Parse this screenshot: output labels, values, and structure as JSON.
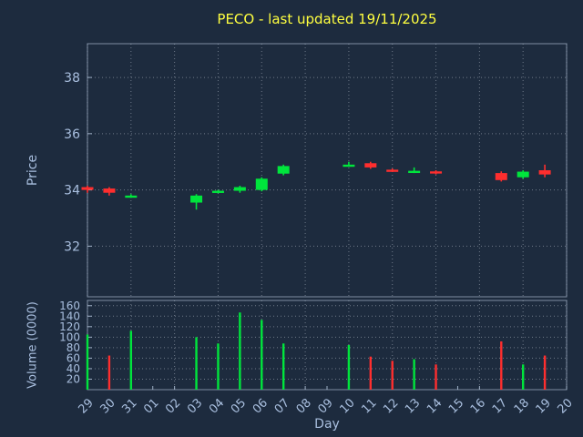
{
  "title": "PECO - last updated 19/11/2025",
  "axes": {
    "price_label": "Price",
    "volume_label": "Volume (0000)",
    "x_label": "Day"
  },
  "colors": {
    "background": "#1d2b3e",
    "title": "#ffff40",
    "axis_line": "#9fb0c6",
    "tick_text": "#a9bfdf",
    "grid": "#e8eef8",
    "up": "#00e53c",
    "down": "#ff2e2e"
  },
  "chart_data": {
    "type": "candlestick",
    "title": "PECO - last updated 19/11/2025",
    "xlabel": "Day",
    "ylabel": "Price",
    "ylabel2": "Volume (0000)",
    "grid": true,
    "x_ticklabels": [
      "29",
      "30",
      "31",
      "01",
      "02",
      "03",
      "04",
      "05",
      "06",
      "07",
      "08",
      "09",
      "10",
      "11",
      "12",
      "13",
      "14",
      "15",
      "16",
      "17",
      "18",
      "19",
      "20"
    ],
    "price_yticks": [
      32,
      34,
      36,
      38
    ],
    "price_ylim": [
      30.2,
      39.2
    ],
    "volume_yticks": [
      20,
      40,
      60,
      80,
      100,
      120,
      140,
      160
    ],
    "volume_ylim": [
      0,
      170
    ],
    "candles": [
      {
        "day": "29",
        "x": 0,
        "open": 34.1,
        "high": 34.15,
        "low": 33.9,
        "close": 34.0,
        "volume": 105,
        "vol_up": true
      },
      {
        "day": "30",
        "x": 1,
        "open": 34.05,
        "high": 34.1,
        "low": 33.8,
        "close": 33.9,
        "volume": 65,
        "vol_up": false
      },
      {
        "day": "31",
        "x": 2,
        "open": 33.8,
        "high": 33.85,
        "low": 33.72,
        "close": 33.8,
        "volume": 112,
        "vol_up": true
      },
      {
        "day": "03",
        "x": 5,
        "open": 33.55,
        "high": 33.85,
        "low": 33.3,
        "close": 33.8,
        "volume": 100,
        "vol_up": true
      },
      {
        "day": "04",
        "x": 6,
        "open": 33.95,
        "high": 34.0,
        "low": 33.88,
        "close": 33.97,
        "volume": 88,
        "vol_up": true
      },
      {
        "day": "05",
        "x": 7,
        "open": 33.97,
        "high": 34.15,
        "low": 33.9,
        "close": 34.1,
        "volume": 147,
        "vol_up": true
      },
      {
        "day": "06",
        "x": 8,
        "open": 34.0,
        "high": 34.45,
        "low": 33.95,
        "close": 34.4,
        "volume": 133,
        "vol_up": true
      },
      {
        "day": "07",
        "x": 9,
        "open": 34.58,
        "high": 34.9,
        "low": 34.52,
        "close": 34.85,
        "volume": 88,
        "vol_up": true
      },
      {
        "day": "10",
        "x": 12,
        "open": 34.88,
        "high": 35.0,
        "low": 34.84,
        "close": 34.9,
        "volume": 85,
        "vol_up": true
      },
      {
        "day": "11",
        "x": 13,
        "open": 34.95,
        "high": 35.0,
        "low": 34.75,
        "close": 34.8,
        "volume": 63,
        "vol_up": false
      },
      {
        "day": "12",
        "x": 14,
        "open": 34.72,
        "high": 34.76,
        "low": 34.64,
        "close": 34.67,
        "volume": 55,
        "vol_up": false
      },
      {
        "day": "13",
        "x": 15,
        "open": 34.64,
        "high": 34.8,
        "low": 34.6,
        "close": 34.68,
        "volume": 58,
        "vol_up": true
      },
      {
        "day": "14",
        "x": 16,
        "open": 34.66,
        "high": 34.7,
        "low": 34.55,
        "close": 34.6,
        "volume": 48,
        "vol_up": false
      },
      {
        "day": "17",
        "x": 19,
        "open": 34.6,
        "high": 34.66,
        "low": 34.3,
        "close": 34.35,
        "volume": 92,
        "vol_up": false
      },
      {
        "day": "18",
        "x": 20,
        "open": 34.45,
        "high": 34.7,
        "low": 34.4,
        "close": 34.65,
        "volume": 48,
        "vol_up": true
      },
      {
        "day": "19",
        "x": 21,
        "open": 34.7,
        "high": 34.9,
        "low": 34.45,
        "close": 34.55,
        "volume": 65,
        "vol_up": false
      }
    ]
  }
}
